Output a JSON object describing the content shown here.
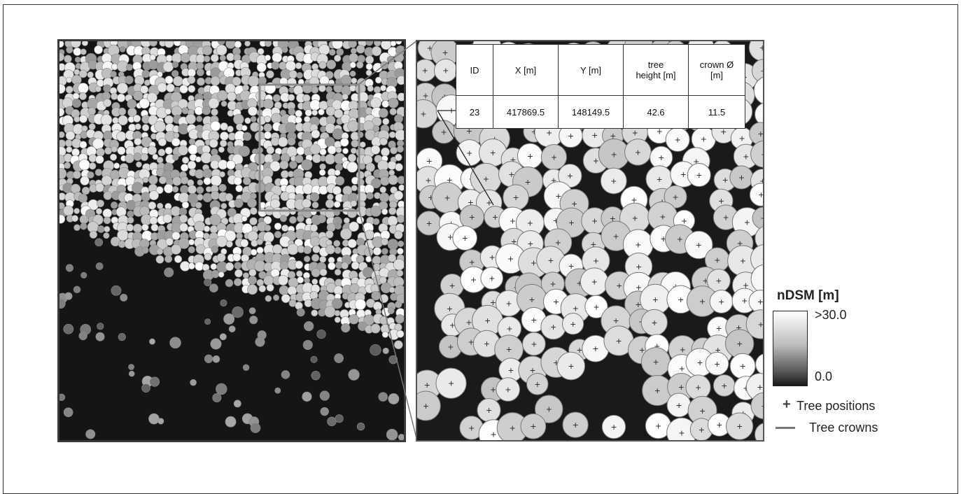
{
  "table": {
    "headers": [
      "ID",
      "X [m]",
      "Y [m]",
      "tree\nheight [m]",
      "crown Ø\n[m]"
    ],
    "rows": [
      [
        "23",
        "417869.5",
        "148149.5",
        "42.6",
        "11.5"
      ]
    ]
  },
  "legend": {
    "title": "nDSM [m]",
    "max_label": ">30.0",
    "min_label": "0.0",
    "tree_positions_label": "Tree positions",
    "tree_crowns_label": "Tree crowns",
    "plus_symbol": "+",
    "colors": {
      "ramp_high": "#ffffff",
      "ramp_low": "#1a1a1a",
      "crown_outline": "#777777"
    }
  }
}
